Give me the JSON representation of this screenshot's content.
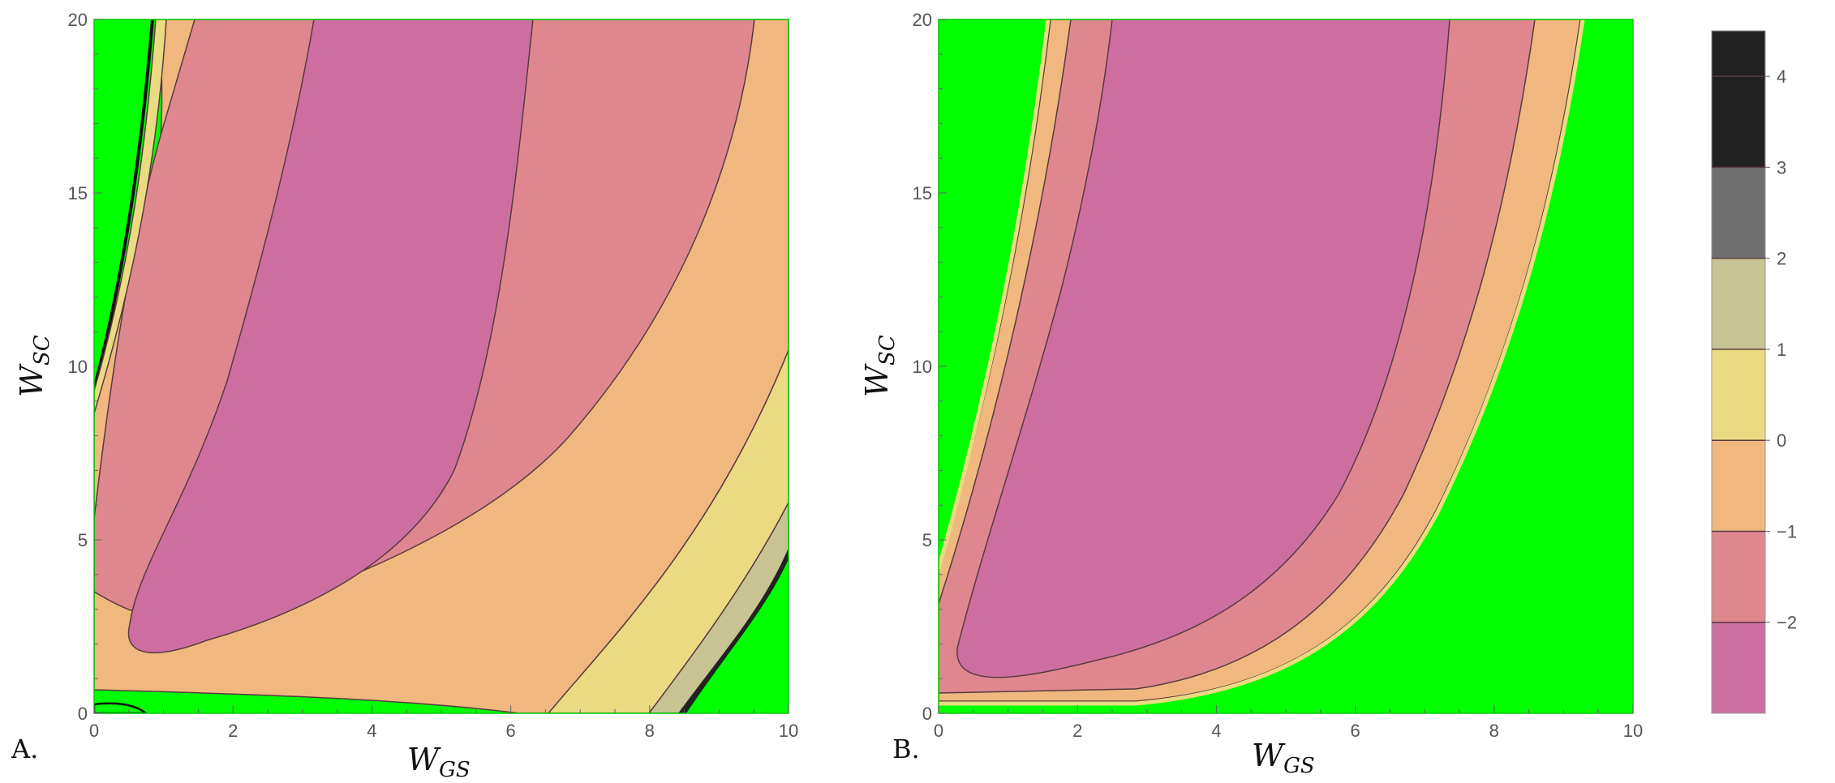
{
  "chart_data": [
    {
      "type": "contour",
      "panel_label": "A.",
      "xlabel": {
        "main": "W",
        "sub": "GS"
      },
      "ylabel": {
        "main": "W",
        "sub": "SC"
      },
      "xlim": [
        0,
        10
      ],
      "ylim": [
        0,
        20
      ],
      "x_ticks": [
        "0",
        "2",
        "4",
        "6",
        "8",
        "10"
      ],
      "y_ticks": [
        "0",
        "5",
        "10",
        "15",
        "20"
      ],
      "background_region_color": "#00ff00",
      "regions": [
        {
          "level": "<-2",
          "polygon": [
            [
              2.3,
              20
            ],
            [
              6.35,
              20
            ],
            [
              6.0,
              17
            ],
            [
              5.3,
              12
            ],
            [
              4.4,
              7.5
            ],
            [
              3.2,
              4.2
            ],
            [
              1.2,
              1.4
            ],
            [
              0.5,
              1.6
            ],
            [
              0.6,
              2.8
            ],
            [
              1.4,
              5.0
            ],
            [
              2.0,
              10
            ],
            [
              2.3,
              14
            ]
          ]
        },
        {
          "level": "-2..-1",
          "polygon": [
            [
              0.6,
              20
            ],
            [
              9.7,
              20
            ],
            [
              9.2,
              17
            ],
            [
              8.5,
              14.5
            ],
            [
              7.5,
              11.5
            ],
            [
              6.5,
              9
            ],
            [
              5.5,
              7
            ],
            [
              4.2,
              5.5
            ],
            [
              2.5,
              4.3
            ],
            [
              1.2,
              3.6
            ],
            [
              0.3,
              2.8
            ],
            [
              0,
              2.5
            ],
            [
              0,
              5.5
            ],
            [
              0.3,
              10
            ],
            [
              0.5,
              15
            ]
          ]
        },
        {
          "level": "-1..0",
          "polygon": [
            [
              0.9,
              20
            ],
            [
              1.0,
              17
            ],
            [
              0.8,
              13
            ],
            [
              0.4,
              9
            ],
            [
              0,
              7.5
            ],
            [
              0,
              0.4
            ],
            [
              1.5,
              0.3
            ],
            [
              3.0,
              0.2
            ],
            [
              4.5,
              0.1
            ],
            [
              5.0,
              0
            ],
            [
              6.5,
              0
            ],
            [
              7.5,
              1.5
            ],
            [
              8.5,
              3.5
            ],
            [
              9.5,
              6.5
            ],
            [
              10,
              9
            ],
            [
              10,
              20
            ]
          ]
        },
        {
          "level": "0..1",
          "polygon": [
            [
              6.5,
              0
            ],
            [
              8.0,
              0
            ],
            [
              9.0,
              2.5
            ],
            [
              10,
              5.5
            ],
            [
              10,
              9
            ],
            [
              9.5,
              6.5
            ],
            [
              8.5,
              3.5
            ],
            [
              7.5,
              1.5
            ]
          ]
        },
        {
          "level": "1..2",
          "polygon": [
            [
              8.0,
              0
            ],
            [
              8.5,
              0
            ],
            [
              9.2,
              2
            ],
            [
              10,
              4.5
            ],
            [
              10,
              6
            ],
            [
              9.5,
              4.5
            ],
            [
              9.0,
              2.5
            ]
          ]
        }
      ]
    },
    {
      "type": "contour",
      "panel_label": "B.",
      "xlabel": {
        "main": "W",
        "sub": "GS"
      },
      "ylabel": {
        "main": "W",
        "sub": "SC"
      },
      "xlim": [
        0,
        10
      ],
      "ylim": [
        0,
        20
      ],
      "x_ticks": [
        "0",
        "2",
        "4",
        "6",
        "8",
        "10"
      ],
      "y_ticks": [
        "0",
        "5",
        "10",
        "15",
        "20"
      ],
      "background_region_color": "#00ff00",
      "regions": [
        {
          "level": "-1..0",
          "polygon": [
            [
              1.6,
              20
            ],
            [
              9.25,
              20
            ],
            [
              8.9,
              15
            ],
            [
              8.4,
              11
            ],
            [
              7.8,
              7.5
            ],
            [
              7.0,
              4.5
            ],
            [
              6.0,
              2.5
            ],
            [
              5.0,
              1.6
            ],
            [
              4.0,
              1.1
            ],
            [
              3.0,
              0.75
            ],
            [
              2.0,
              0.55
            ],
            [
              1.0,
              0.5
            ],
            [
              0,
              0.5
            ],
            [
              0,
              4.5
            ],
            [
              0.3,
              6.5
            ],
            [
              0.8,
              10
            ],
            [
              1.2,
              15
            ]
          ]
        },
        {
          "level": "-2..-1",
          "polygon": [
            [
              1.9,
              20
            ],
            [
              8.6,
              20
            ],
            [
              8.2,
              15
            ],
            [
              7.6,
              11
            ],
            [
              6.9,
              7.5
            ],
            [
              6.0,
              4.8
            ],
            [
              5.0,
              3.0
            ],
            [
              4.0,
              2.0
            ],
            [
              3.0,
              1.3
            ],
            [
              2.0,
              0.9
            ],
            [
              1.0,
              0.7
            ],
            [
              0,
              0.6
            ],
            [
              0,
              3.8
            ],
            [
              0.4,
              6.5
            ],
            [
              0.9,
              10
            ],
            [
              1.4,
              15
            ]
          ]
        },
        {
          "level": "<-2",
          "polygon": [
            [
              2.5,
              20
            ],
            [
              7.35,
              20
            ],
            [
              7.1,
              16
            ],
            [
              6.6,
              12
            ],
            [
              5.9,
              8.5
            ],
            [
              5.0,
              5.8
            ],
            [
              4.0,
              3.8
            ],
            [
              3.0,
              2.5
            ],
            [
              2.0,
              1.6
            ],
            [
              1.0,
              1.1
            ],
            [
              0.4,
              1.0
            ],
            [
              0.2,
              1.6
            ],
            [
              0.6,
              4.0
            ],
            [
              1.3,
              7.5
            ],
            [
              1.9,
              11
            ],
            [
              2.3,
              15
            ]
          ]
        }
      ]
    },
    {
      "type": "colorbar",
      "tick_labels": [
        "4",
        "3",
        "2",
        "1",
        "0",
        "−1",
        "−2"
      ],
      "range": [
        -3,
        4.5
      ],
      "bands": [
        {
          "from": 3,
          "to": 4.5,
          "color": "#222222"
        },
        {
          "from": 2,
          "to": 3,
          "color": "#6e6e6e"
        },
        {
          "from": 1,
          "to": 2,
          "color": "#c8c393"
        },
        {
          "from": 0,
          "to": 1,
          "color": "#eadb82"
        },
        {
          "from": -1,
          "to": 0,
          "color": "#f0b87e"
        },
        {
          "from": -2,
          "to": -1,
          "color": "#de878f"
        },
        {
          "from": -3,
          "to": -2,
          "color": "#cc6ea0"
        }
      ]
    }
  ],
  "colors": {
    "lt_m2": "#cc6ea0",
    "m2_m1": "#de878f",
    "m1_0": "#f0b87e",
    "z_1": "#eadb82",
    "one_2": "#c8c393",
    "two_3": "#6e6e6e",
    "three_up": "#222222",
    "bright_green": "#00ff00",
    "contour_line": "#5a3a40"
  }
}
